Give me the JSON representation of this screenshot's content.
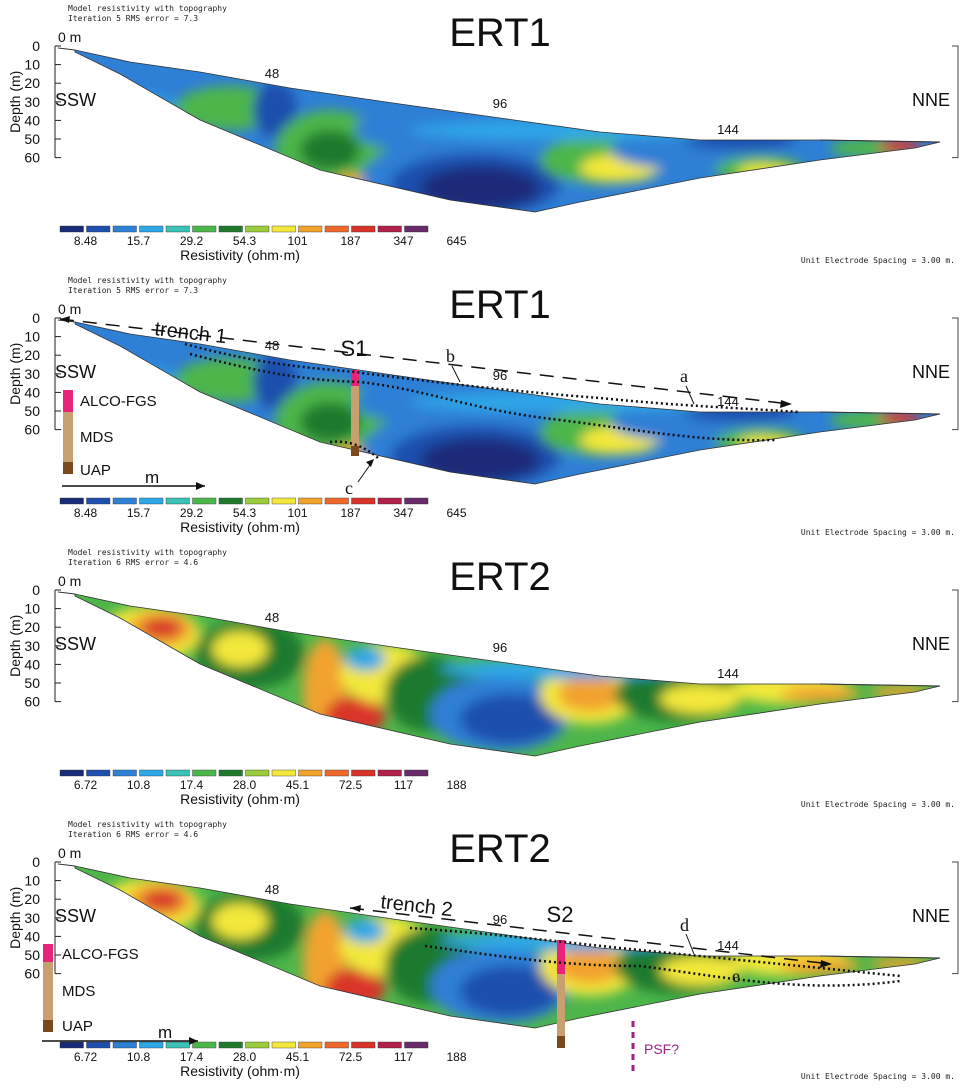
{
  "panels": [
    {
      "id": "ert1-raw",
      "header_line1": "Model resistivity with topography",
      "header_line2": "Iteration 5 RMS error = 7.3",
      "title": "ERT1",
      "dir_left": "SSW",
      "dir_right": "NNE",
      "zero_label": "0 m",
      "ylabel": "Depth (m)",
      "yticks": [
        "0",
        "10",
        "20",
        "30",
        "40",
        "50",
        "60"
      ],
      "distance_ticks": [
        "48",
        "96",
        "144"
      ],
      "colorbar_values": [
        "8.48",
        "15.7",
        "29.2",
        "54.3",
        "101",
        "187",
        "347",
        "645"
      ],
      "colorbar_label": "Resistivity (ohm·m)",
      "footer": "Unit Electrode Spacing = 3.00 m.",
      "scheme": "ert1"
    },
    {
      "id": "ert1-annotated",
      "header_line1": "Model resistivity with topography",
      "header_line2": "Iteration 5 RMS error = 7.3",
      "title": "ERT1",
      "dir_left": "SSW",
      "dir_right": "NNE",
      "zero_label": "0 m",
      "ylabel": "Depth (m)",
      "yticks": [
        "0",
        "10",
        "20",
        "30",
        "40",
        "50",
        "60"
      ],
      "distance_ticks": [
        "48",
        "96",
        "144"
      ],
      "colorbar_values": [
        "8.48",
        "15.7",
        "29.2",
        "54.3",
        "101",
        "187",
        "347",
        "645"
      ],
      "colorbar_label": "Resistivity (ohm·m)",
      "footer": "Unit Electrode Spacing = 3.00 m.",
      "scheme": "ert1",
      "annotations": {
        "trench": "trench 1",
        "station": "S1",
        "labels": [
          "a",
          "b",
          "c"
        ],
        "legend": [
          "ALCO-FGS",
          "MDS",
          "UAP"
        ],
        "arrow_label": "m"
      }
    },
    {
      "id": "ert2-raw",
      "header_line1": "Model resistivity with topography",
      "header_line2": "Iteration 6 RMS error = 4.6",
      "title": "ERT2",
      "dir_left": "SSW",
      "dir_right": "NNE",
      "zero_label": "0 m",
      "ylabel": "Depth (m)",
      "yticks": [
        "0",
        "10",
        "20",
        "30",
        "40",
        "50",
        "60"
      ],
      "distance_ticks": [
        "48",
        "96",
        "144"
      ],
      "colorbar_values": [
        "6.72",
        "10.8",
        "17.4",
        "28.0",
        "45.1",
        "72.5",
        "117",
        "188"
      ],
      "colorbar_label": "Resistivity (ohm·m)",
      "footer": "Unit Electrode Spacing = 3.00 m.",
      "scheme": "ert2"
    },
    {
      "id": "ert2-annotated",
      "header_line1": "Model resistivity with topography",
      "header_line2": "Iteration 6 RMS error = 4.6",
      "title": "ERT2",
      "dir_left": "SSW",
      "dir_right": "NNE",
      "zero_label": "0 m",
      "ylabel": "Depth (m)",
      "yticks": [
        "0",
        "10",
        "20",
        "30",
        "40",
        "50",
        "60"
      ],
      "distance_ticks": [
        "48",
        "96",
        "144"
      ],
      "colorbar_values": [
        "6.72",
        "10.8",
        "17.4",
        "28.0",
        "45.1",
        "72.5",
        "117",
        "188"
      ],
      "colorbar_label": "Resistivity (ohm·m)",
      "footer": "Unit Electrode Spacing = 3.00 m.",
      "scheme": "ert2",
      "annotations": {
        "trench": "trench 2",
        "station": "S2",
        "labels": [
          "d",
          "e"
        ],
        "legend": [
          "ALCO-FGS",
          "MDS",
          "UAP"
        ],
        "arrow_label": "m",
        "fault_label": "PSF?"
      }
    }
  ],
  "colors": {
    "colorbar": [
      "#1a2a78",
      "#1f4fae",
      "#2e7fd6",
      "#2ea7e8",
      "#3cc2b4",
      "#4db64a",
      "#1f7a2e",
      "#9ccc3c",
      "#f3e83a",
      "#f2a32e",
      "#ef6a2a",
      "#d9342a",
      "#b0224a",
      "#6a2a6a"
    ],
    "alco_fgs": "#e8237a",
    "mds": "#c8a070",
    "uap": "#7a4a1e",
    "psf": "#a0208a"
  }
}
